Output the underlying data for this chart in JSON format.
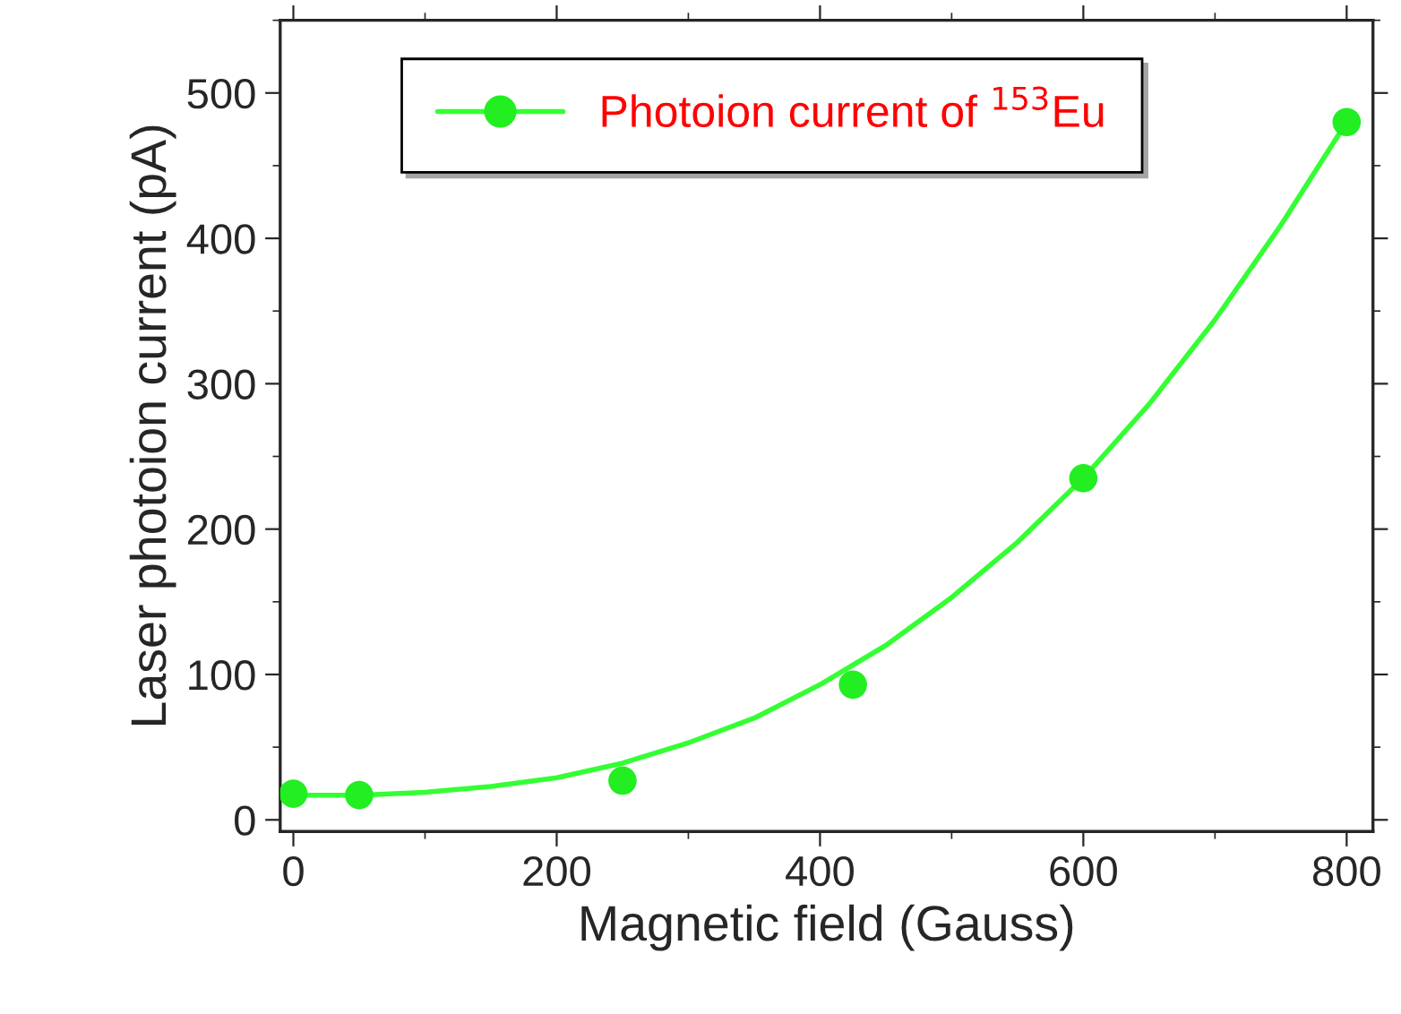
{
  "chart_data": {
    "type": "scatter",
    "xlabel": "Magnetic field (Gauss)",
    "ylabel": "Laser photoion current (pA)",
    "xlim": [
      -10,
      820
    ],
    "ylim": [
      -8,
      550
    ],
    "xticks": [
      0,
      200,
      400,
      600,
      800
    ],
    "yticks": [
      0,
      100,
      200,
      300,
      400,
      500
    ],
    "legend": "top",
    "marker": "circle",
    "grid": false,
    "series": [
      {
        "type": "line",
        "marker": "none",
        "color": "#33ff33",
        "x": [
          0,
          50,
          100,
          150,
          200,
          250,
          300,
          350,
          400,
          450,
          500,
          550,
          600,
          650,
          700,
          750,
          800
        ],
        "values": [
          17,
          17,
          19,
          23,
          29,
          39,
          53,
          70,
          93,
          120,
          153,
          191,
          235,
          286,
          344,
          409,
          480
        ]
      },
      {
        "name": "Photoion current of $^{153}$Eu",
        "color": "#22ee22",
        "x": [
          0,
          50,
          250,
          425,
          600,
          800
        ],
        "values": [
          18,
          17,
          27,
          93,
          235,
          480
        ]
      }
    ]
  }
}
